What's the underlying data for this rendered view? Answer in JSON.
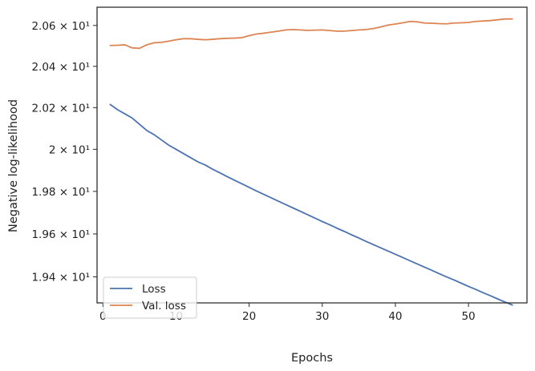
{
  "chart_data": {
    "type": "line",
    "title": "",
    "xlabel": "Epochs",
    "ylabel": "Negative log-likelihood",
    "x_ticks": [
      0,
      10,
      20,
      30,
      40,
      50
    ],
    "xlim": [
      -0.8,
      58.0
    ],
    "y_scale": "log",
    "ylim": [
      19.28,
      20.69
    ],
    "y_ticks": [
      {
        "value": 19.4,
        "label": "1.94 × 10¹"
      },
      {
        "value": 19.6,
        "label": "1.96 × 10¹"
      },
      {
        "value": 19.8,
        "label": "1.98 × 10¹"
      },
      {
        "value": 20.0,
        "label": "2 × 10¹"
      },
      {
        "value": 20.2,
        "label": "2.02 × 10¹"
      },
      {
        "value": 20.4,
        "label": "2.04 × 10¹"
      },
      {
        "value": 20.6,
        "label": "2.06 × 10¹"
      }
    ],
    "grid": false,
    "legend_position": "bottom-left",
    "x": [
      1,
      2,
      3,
      4,
      5,
      6,
      7,
      8,
      9,
      10,
      11,
      12,
      13,
      14,
      15,
      16,
      17,
      18,
      19,
      20,
      21,
      22,
      23,
      24,
      25,
      26,
      27,
      28,
      29,
      30,
      31,
      32,
      33,
      34,
      35,
      36,
      37,
      38,
      39,
      40,
      41,
      42,
      43,
      44,
      45,
      46,
      47,
      48,
      49,
      50,
      51,
      52,
      53,
      54,
      55,
      56
    ],
    "series": [
      {
        "name": "Loss",
        "color": "#4c72b0",
        "values": [
          20.215,
          20.19,
          20.17,
          20.15,
          20.12,
          20.09,
          20.07,
          20.045,
          20.02,
          20.0,
          19.98,
          19.96,
          19.94,
          19.925,
          19.905,
          19.888,
          19.87,
          19.853,
          19.836,
          19.819,
          19.802,
          19.786,
          19.77,
          19.754,
          19.738,
          19.722,
          19.706,
          19.69,
          19.674,
          19.658,
          19.643,
          19.627,
          19.612,
          19.596,
          19.581,
          19.565,
          19.55,
          19.535,
          19.52,
          19.505,
          19.49,
          19.475,
          19.46,
          19.445,
          19.43,
          19.415,
          19.4,
          19.386,
          19.371,
          19.356,
          19.342,
          19.327,
          19.313,
          19.298,
          19.284,
          19.27
        ]
      },
      {
        "name": "Val. loss",
        "color": "#dd8452",
        "values": [
          20.502,
          20.503,
          20.505,
          20.49,
          20.488,
          20.505,
          20.515,
          20.517,
          20.523,
          20.53,
          20.535,
          20.535,
          20.532,
          20.53,
          20.532,
          20.535,
          20.537,
          20.538,
          20.54,
          20.55,
          20.558,
          20.562,
          20.567,
          20.572,
          20.578,
          20.58,
          20.578,
          20.576,
          20.577,
          20.578,
          20.575,
          20.572,
          20.572,
          20.575,
          20.578,
          20.58,
          20.585,
          20.593,
          20.602,
          20.607,
          20.613,
          20.62,
          20.618,
          20.612,
          20.611,
          20.609,
          20.608,
          20.612,
          20.613,
          20.615,
          20.62,
          20.622,
          20.624,
          20.628,
          20.632,
          20.632
        ]
      }
    ]
  }
}
